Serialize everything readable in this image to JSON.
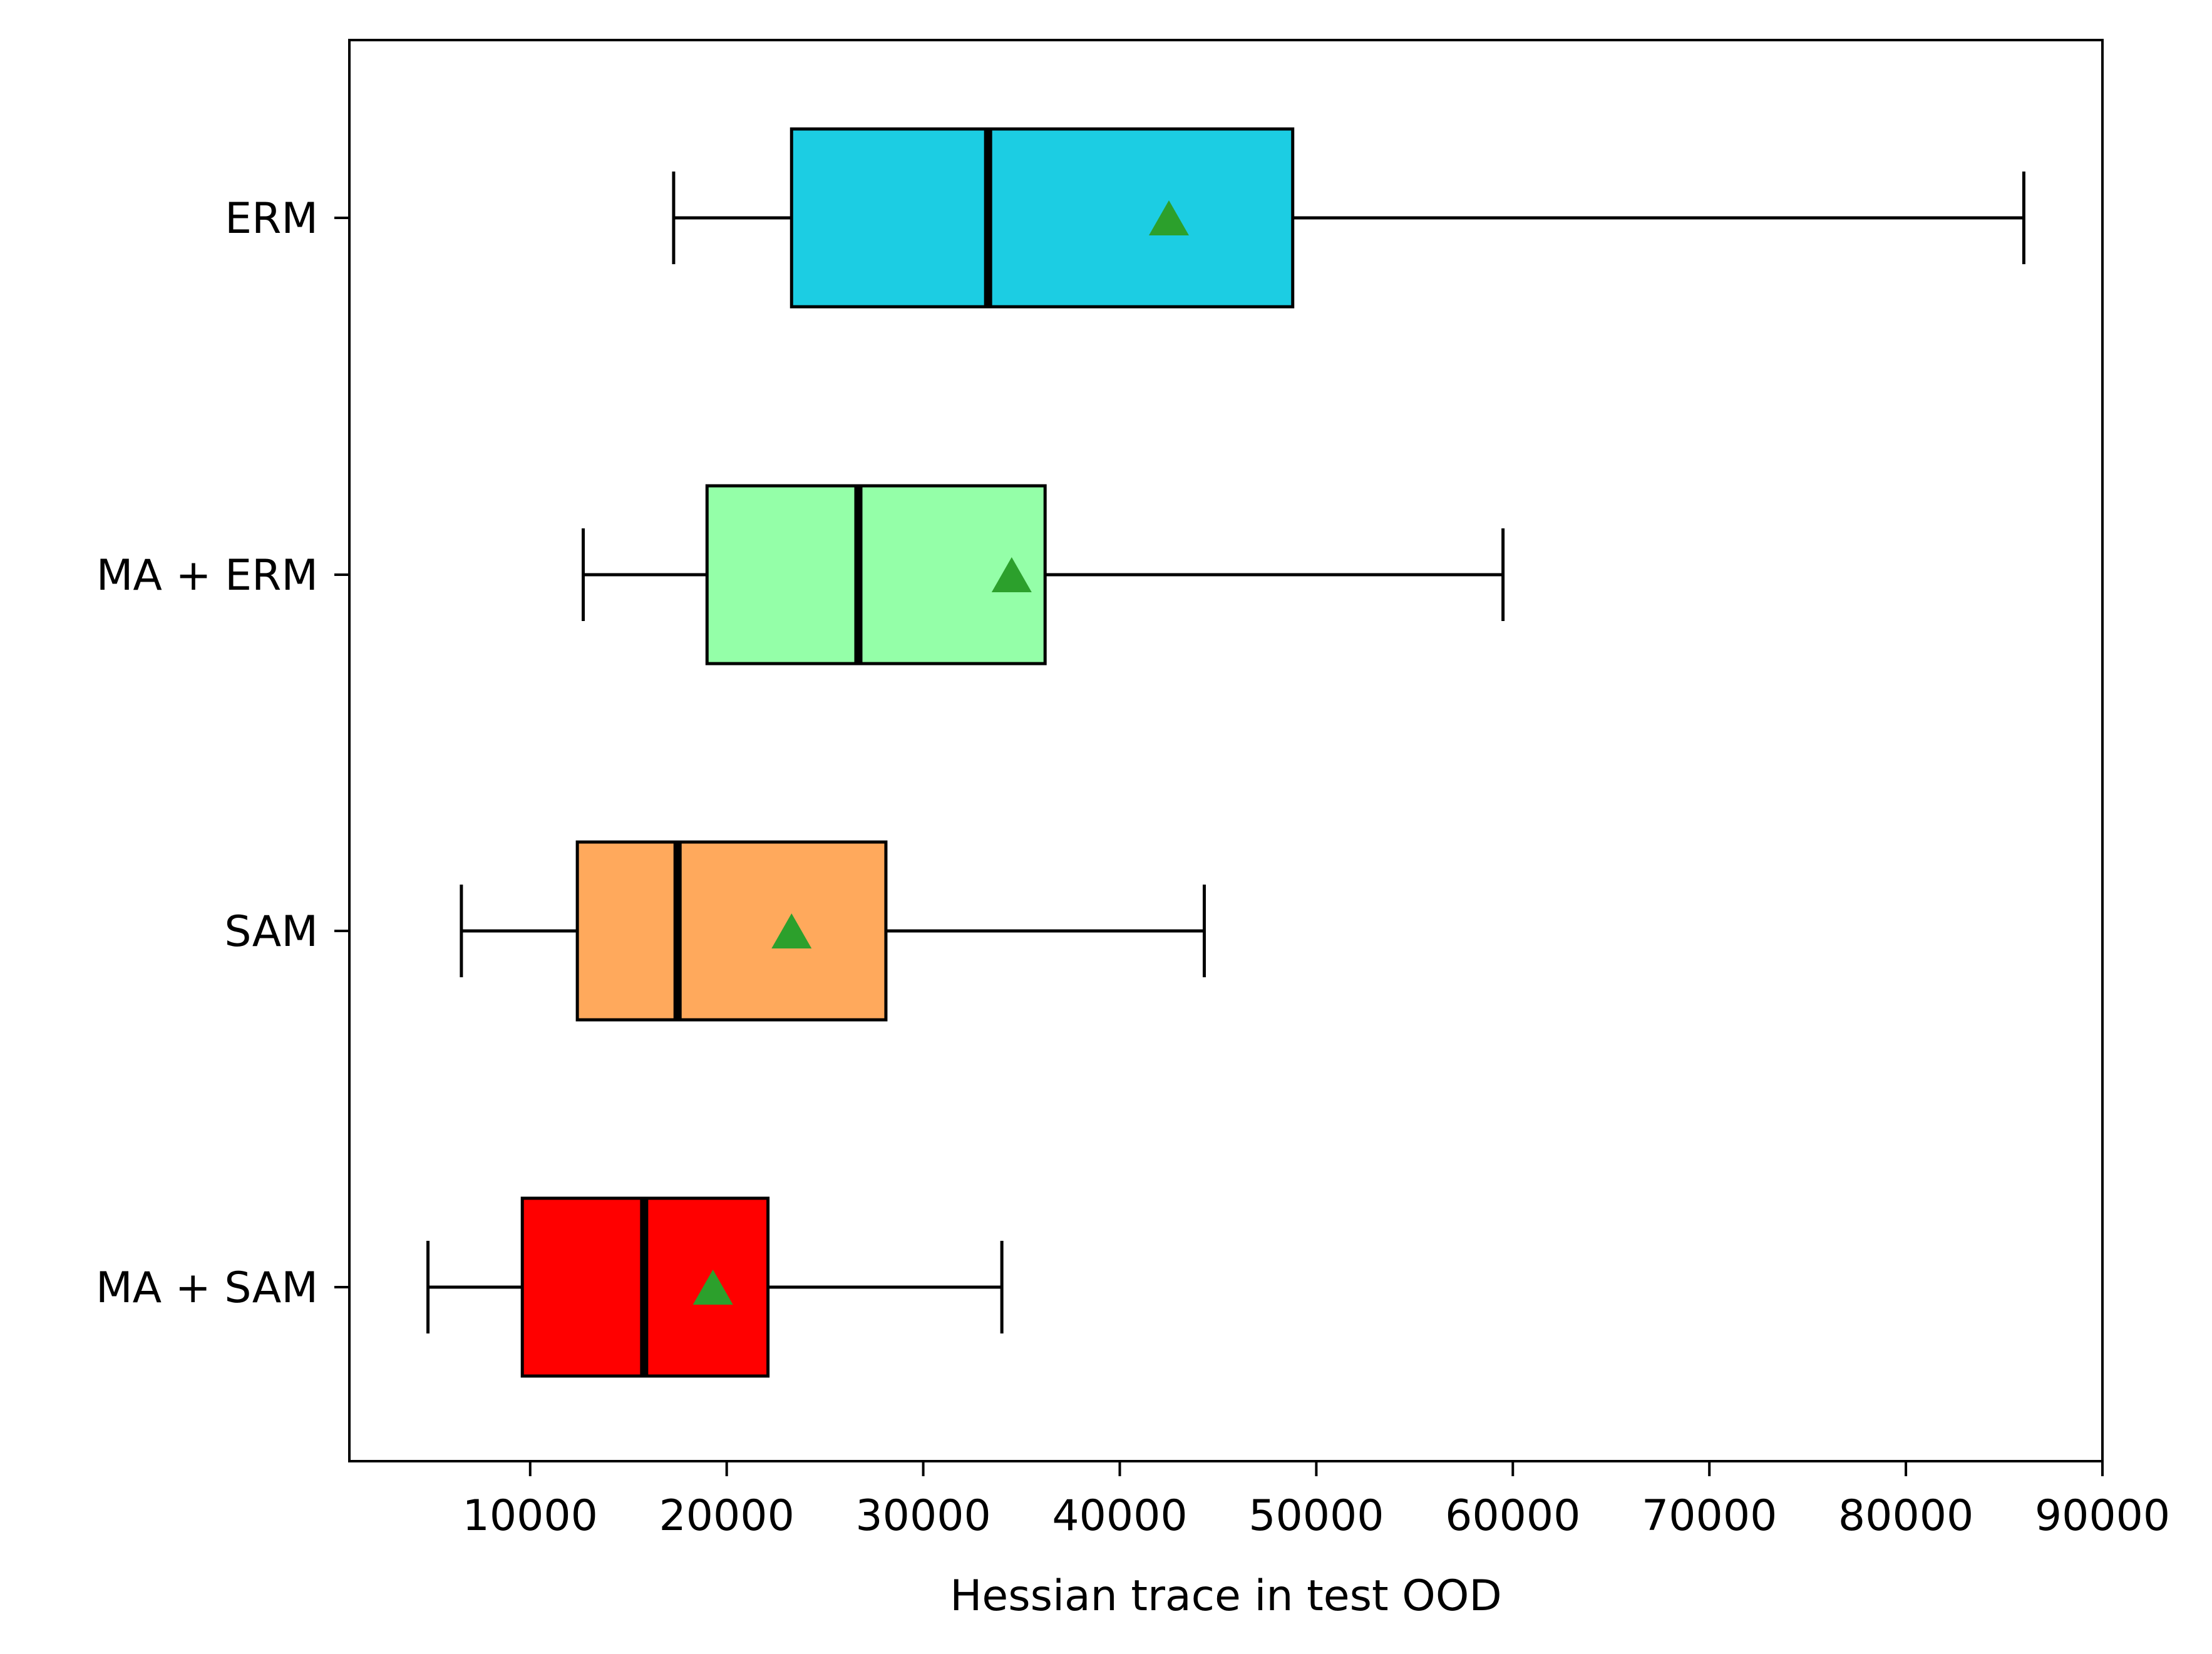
{
  "chart_data": {
    "type": "boxplot",
    "orientation": "horizontal",
    "title": "",
    "xlabel": "Hessian trace in test OOD",
    "ylabel": "",
    "xlim": [
      800,
      90000
    ],
    "xticks": [
      10000,
      20000,
      30000,
      40000,
      50000,
      60000,
      70000,
      80000,
      90000
    ],
    "grid": false,
    "mean_marker": {
      "shape": "triangle",
      "color": "#2ca02c"
    },
    "series": [
      {
        "name": "ERM",
        "color": "#1ccde3",
        "whisker_low": 17300,
        "q1": 23300,
        "median": 33300,
        "q3": 48800,
        "whisker_high": 86000,
        "mean": 42500
      },
      {
        "name": "MA + ERM",
        "color": "#94ffa8",
        "whisker_low": 12700,
        "q1": 19000,
        "median": 26700,
        "q3": 36200,
        "whisker_high": 59500,
        "mean": 34500
      },
      {
        "name": "SAM",
        "color": "#ffa95c",
        "whisker_low": 6500,
        "q1": 12400,
        "median": 17500,
        "q3": 28100,
        "whisker_high": 44300,
        "mean": 23300
      },
      {
        "name": "MA + SAM",
        "color": "#ff0000",
        "whisker_low": 4800,
        "q1": 9600,
        "median": 15800,
        "q3": 22100,
        "whisker_high": 34000,
        "mean": 19300
      }
    ]
  }
}
